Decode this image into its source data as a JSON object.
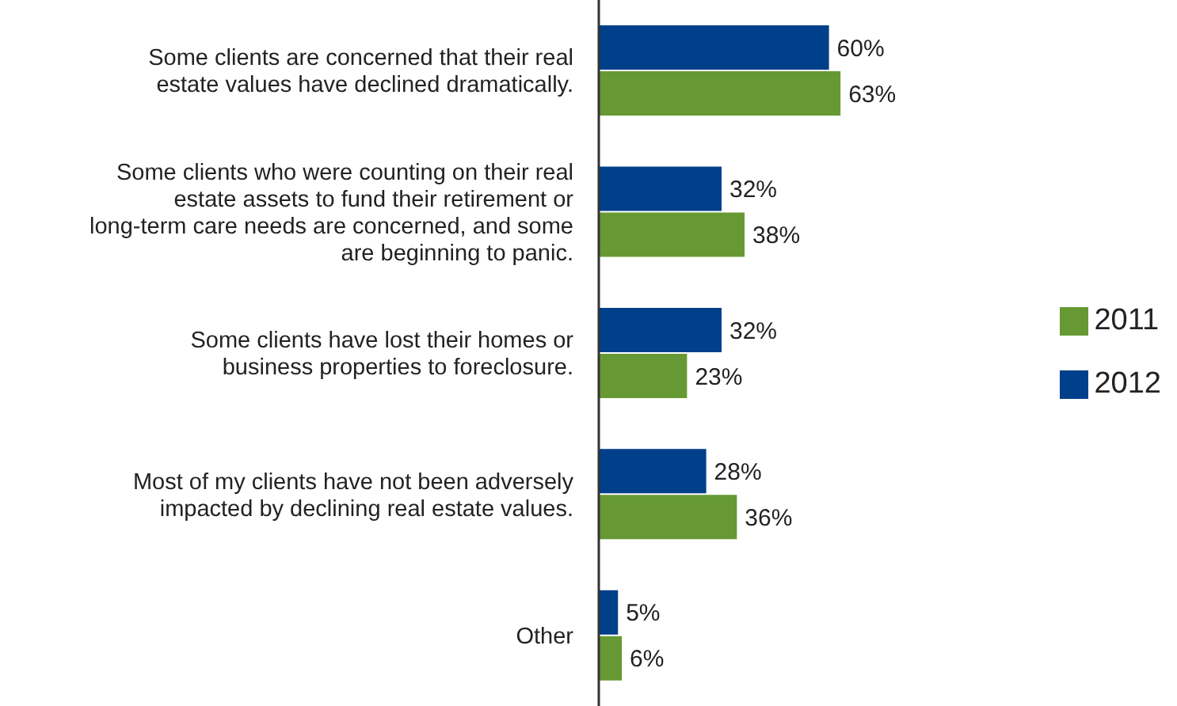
{
  "chart_data": {
    "type": "bar",
    "orientation": "horizontal",
    "categories": [
      "Some clients are concerned that their real estate values have declined dramatically.",
      "Some clients who were counting on their real estate assets to fund their retirement or long-term care needs are concerned, and some are beginning to panic.",
      "Some clients have lost their homes or business properties to foreclosure.",
      "Most of my clients have not been adversely impacted by declining real estate values.",
      "Other"
    ],
    "series": [
      {
        "name": "2012",
        "color": "#003f8a",
        "values": [
          60,
          32,
          32,
          28,
          5
        ],
        "value_labels": [
          "60%",
          "32%",
          "32%",
          "28%",
          "5%"
        ]
      },
      {
        "name": "2011",
        "color": "#669933",
        "values": [
          63,
          38,
          23,
          36,
          6
        ],
        "value_labels": [
          "63%",
          "38%",
          "23%",
          "36%",
          "6%"
        ]
      }
    ],
    "tick_labels": "y",
    "legend": "right",
    "grid": false
  }
}
